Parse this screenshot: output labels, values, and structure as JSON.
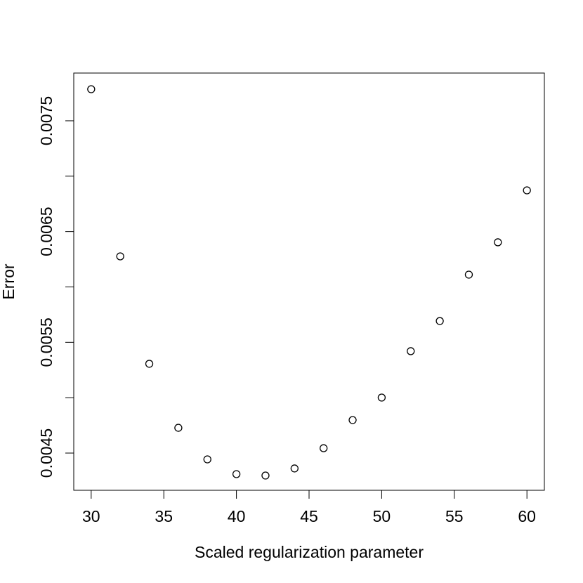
{
  "chart_data": {
    "type": "scatter",
    "x_label": "Scaled regularization parameter",
    "y_label": "Error",
    "x": [
      30,
      32,
      34,
      36,
      38,
      40,
      42,
      44,
      46,
      48,
      50,
      52,
      54,
      56,
      58,
      60
    ],
    "values": [
      0.007785,
      0.006276,
      0.005306,
      0.004728,
      0.004443,
      0.00431,
      0.004297,
      0.004361,
      0.004544,
      0.004798,
      0.005001,
      0.00542,
      0.005692,
      0.006111,
      0.006403,
      0.006872
    ],
    "color": "#000000",
    "xlim": [
      28.8,
      61.2
    ],
    "ylim": [
      0.004164,
      0.007931
    ],
    "xticks": [
      30,
      35,
      40,
      45,
      50,
      55,
      60
    ],
    "yticks": [
      0.0045,
      0.0055,
      0.0065,
      0.0075
    ],
    "yticks_unlabeled": [
      0.005,
      0.006,
      0.007
    ],
    "grid": false
  }
}
